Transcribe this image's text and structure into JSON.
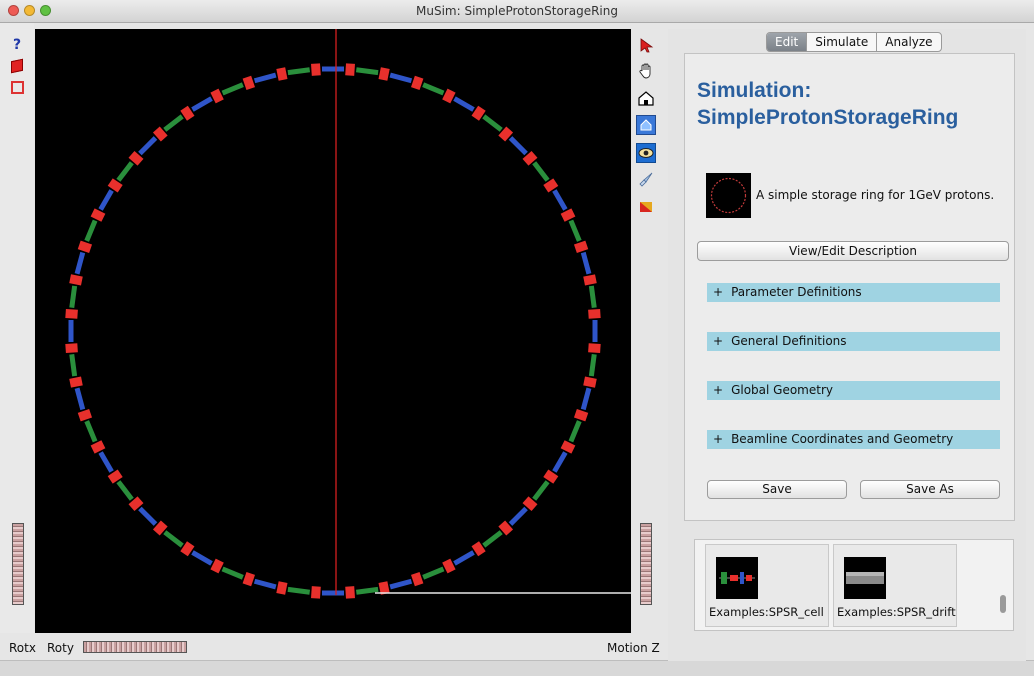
{
  "window": {
    "title": "MuSim: SimpleProtonStorageRing"
  },
  "left_toolbar": {
    "help_label": "?"
  },
  "bottom": {
    "rotx_label": "Rotx",
    "roty_label": "Roty",
    "motionz_label": "Motion Z"
  },
  "right_toolbar": {
    "icons": [
      "select-arrow-icon",
      "hand-pan-icon",
      "house-view-icon",
      "home-view-icon",
      "eye-view-icon",
      "rocket-icon",
      "color-swatch-icon"
    ]
  },
  "tabs": [
    "Edit",
    "Simulate",
    "Analyze"
  ],
  "active_tab": "Edit",
  "simulation": {
    "title_line1": "Simulation:",
    "title_line2": "SimpleProtonStorageRing",
    "description": "A simple storage ring for 1GeV protons."
  },
  "buttons": {
    "view_edit": "View/Edit Description",
    "save": "Save",
    "save_as": "Save As"
  },
  "sections": [
    {
      "plus": "+",
      "label": "Parameter Definitions"
    },
    {
      "plus": "+",
      "label": "General Definitions"
    },
    {
      "plus": "+",
      "label": "Global Geometry"
    },
    {
      "plus": "+",
      "label": "Beamline Coordinates and Geometry"
    }
  ],
  "examples": [
    {
      "label": "Examples:SPSR_cell"
    },
    {
      "label": "Examples:SPSR_drift"
    }
  ],
  "colors": {
    "dipole": "#e8302c",
    "quad_focus": "#2f55c9",
    "quad_defocus": "#2a8f3c",
    "beam_line": "#d41f1f",
    "title_blue": "#2a5f9e",
    "section_bg": "#9fd3e2"
  }
}
